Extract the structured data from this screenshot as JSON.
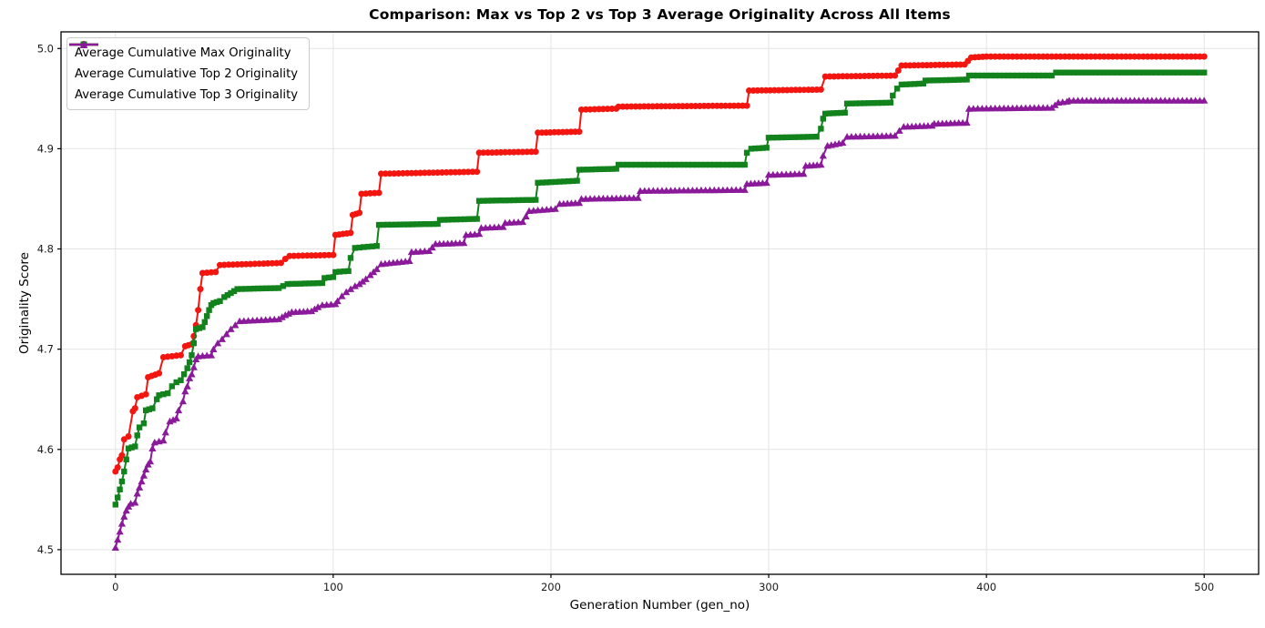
{
  "chart_data": {
    "type": "line",
    "title": "Comparison: Max vs Top 2 vs Top 3 Average Originality Across All Items",
    "grid": true,
    "legend_position": "upper left",
    "axes": {
      "xlabel": "Generation Number (gen_no)",
      "ylabel": "Originality Score",
      "xlim": [
        -25,
        525
      ],
      "ylim": [
        4.4754,
        5.0166
      ],
      "x_tick_values": [
        0,
        100,
        200,
        300,
        400,
        500
      ],
      "x_tick_labels": [
        "0",
        "100",
        "200",
        "300",
        "400",
        "500"
      ],
      "y_tick_values": [
        4.5,
        4.6,
        4.7,
        4.8,
        4.9,
        5.0
      ],
      "y_tick_labels": [
        "4.5",
        "4.6",
        "4.7",
        "4.8",
        "4.9",
        "5.0"
      ],
      "grid_color": "#e4e4e4",
      "spine_color": "#000000"
    },
    "series": [
      {
        "name": "Average Cumulative Max Originality",
        "color": "#f31510",
        "marker": "circle",
        "points": [
          [
            0,
            4.578
          ],
          [
            1,
            4.582
          ],
          [
            2,
            4.59
          ],
          [
            3,
            4.594
          ],
          [
            4,
            4.61
          ],
          [
            6,
            4.613
          ],
          [
            8,
            4.638
          ],
          [
            9,
            4.641
          ],
          [
            10,
            4.652
          ],
          [
            14,
            4.655
          ],
          [
            15,
            4.672
          ],
          [
            20,
            4.676
          ],
          [
            22,
            4.692
          ],
          [
            30,
            4.694
          ],
          [
            32,
            4.703
          ],
          [
            35,
            4.705
          ],
          [
            36,
            4.713
          ],
          [
            37,
            4.724
          ],
          [
            38,
            4.739
          ],
          [
            39,
            4.76
          ],
          [
            40,
            4.776
          ],
          [
            46,
            4.777
          ],
          [
            48,
            4.784
          ],
          [
            76,
            4.786
          ],
          [
            78,
            4.79
          ],
          [
            80,
            4.793
          ],
          [
            100,
            4.794
          ],
          [
            101,
            4.814
          ],
          [
            108,
            4.816
          ],
          [
            109,
            4.834
          ],
          [
            112,
            4.836
          ],
          [
            113,
            4.855
          ],
          [
            121,
            4.856
          ],
          [
            122,
            4.875
          ],
          [
            166,
            4.877
          ],
          [
            167,
            4.896
          ],
          [
            193,
            4.897
          ],
          [
            194,
            4.916
          ],
          [
            213,
            4.917
          ],
          [
            214,
            4.939
          ],
          [
            230,
            4.94
          ],
          [
            231,
            4.942
          ],
          [
            290,
            4.943
          ],
          [
            291,
            4.958
          ],
          [
            324,
            4.959
          ],
          [
            326,
            4.972
          ],
          [
            358,
            4.973
          ],
          [
            361,
            4.983
          ],
          [
            390,
            4.984
          ],
          [
            393,
            4.991
          ],
          [
            400,
            4.992
          ],
          [
            500,
            4.992
          ]
        ]
      },
      {
        "name": "Average Cumulative Top 2 Originality",
        "color": "#12831c",
        "marker": "square",
        "points": [
          [
            0,
            4.545
          ],
          [
            1,
            4.552
          ],
          [
            2,
            4.56
          ],
          [
            3,
            4.568
          ],
          [
            4,
            4.578
          ],
          [
            5,
            4.59
          ],
          [
            6,
            4.601
          ],
          [
            9,
            4.603
          ],
          [
            10,
            4.614
          ],
          [
            11,
            4.622
          ],
          [
            13,
            4.626
          ],
          [
            14,
            4.639
          ],
          [
            17,
            4.641
          ],
          [
            19,
            4.65
          ],
          [
            20,
            4.654
          ],
          [
            24,
            4.656
          ],
          [
            26,
            4.663
          ],
          [
            28,
            4.667
          ],
          [
            30,
            4.669
          ],
          [
            33,
            4.681
          ],
          [
            34,
            4.687
          ],
          [
            35,
            4.694
          ],
          [
            36,
            4.706
          ],
          [
            37,
            4.72
          ],
          [
            40,
            4.722
          ],
          [
            41,
            4.727
          ],
          [
            42,
            4.733
          ],
          [
            43,
            4.739
          ],
          [
            44,
            4.744
          ],
          [
            45,
            4.746
          ],
          [
            48,
            4.748
          ],
          [
            50,
            4.752
          ],
          [
            53,
            4.756
          ],
          [
            56,
            4.76
          ],
          [
            75,
            4.761
          ],
          [
            79,
            4.765
          ],
          [
            95,
            4.766
          ],
          [
            96,
            4.771
          ],
          [
            100,
            4.772
          ],
          [
            101,
            4.777
          ],
          [
            107,
            4.778
          ],
          [
            108,
            4.791
          ],
          [
            110,
            4.801
          ],
          [
            120,
            4.803
          ],
          [
            121,
            4.824
          ],
          [
            148,
            4.825
          ],
          [
            149,
            4.829
          ],
          [
            166,
            4.83
          ],
          [
            167,
            4.848
          ],
          [
            193,
            4.849
          ],
          [
            194,
            4.866
          ],
          [
            212,
            4.868
          ],
          [
            213,
            4.879
          ],
          [
            230,
            4.88
          ],
          [
            231,
            4.884
          ],
          [
            289,
            4.884
          ],
          [
            290,
            4.896
          ],
          [
            292,
            4.9
          ],
          [
            299,
            4.901
          ],
          [
            300,
            4.911
          ],
          [
            322,
            4.912
          ],
          [
            324,
            4.92
          ],
          [
            325,
            4.93
          ],
          [
            326,
            4.935
          ],
          [
            335,
            4.936
          ],
          [
            336,
            4.945
          ],
          [
            356,
            4.946
          ],
          [
            357,
            4.953
          ],
          [
            359,
            4.96
          ],
          [
            361,
            4.964
          ],
          [
            371,
            4.965
          ],
          [
            372,
            4.968
          ],
          [
            391,
            4.969
          ],
          [
            392,
            4.973
          ],
          [
            430,
            4.973
          ],
          [
            432,
            4.976
          ],
          [
            500,
            4.976
          ]
        ]
      },
      {
        "name": "Average Cumulative Top 3 Originality",
        "color": "#8a1a9a",
        "marker": "triangle",
        "points": [
          [
            0,
            4.502
          ],
          [
            1,
            4.51
          ],
          [
            2,
            4.518
          ],
          [
            3,
            4.526
          ],
          [
            4,
            4.533
          ],
          [
            5,
            4.539
          ],
          [
            6,
            4.543
          ],
          [
            7,
            4.546
          ],
          [
            9,
            4.547
          ],
          [
            10,
            4.556
          ],
          [
            11,
            4.562
          ],
          [
            12,
            4.568
          ],
          [
            13,
            4.574
          ],
          [
            14,
            4.58
          ],
          [
            15,
            4.585
          ],
          [
            16,
            4.588
          ],
          [
            17,
            4.601
          ],
          [
            18,
            4.607
          ],
          [
            22,
            4.609
          ],
          [
            23,
            4.617
          ],
          [
            25,
            4.628
          ],
          [
            28,
            4.631
          ],
          [
            29,
            4.639
          ],
          [
            31,
            4.648
          ],
          [
            32,
            4.658
          ],
          [
            33,
            4.663
          ],
          [
            34,
            4.671
          ],
          [
            35,
            4.675
          ],
          [
            36,
            4.682
          ],
          [
            37,
            4.69
          ],
          [
            38,
            4.693
          ],
          [
            44,
            4.694
          ],
          [
            45,
            4.7
          ],
          [
            47,
            4.706
          ],
          [
            49,
            4.71
          ],
          [
            51,
            4.715
          ],
          [
            53,
            4.72
          ],
          [
            55,
            4.724
          ],
          [
            57,
            4.728
          ],
          [
            75,
            4.73
          ],
          [
            78,
            4.734
          ],
          [
            81,
            4.737
          ],
          [
            90,
            4.738
          ],
          [
            93,
            4.742
          ],
          [
            95,
            4.744
          ],
          [
            101,
            4.745
          ],
          [
            102,
            4.748
          ],
          [
            104,
            4.753
          ],
          [
            106,
            4.757
          ],
          [
            108,
            4.76
          ],
          [
            110,
            4.763
          ],
          [
            112,
            4.765
          ],
          [
            115,
            4.77
          ],
          [
            117,
            4.774
          ],
          [
            120,
            4.78
          ],
          [
            122,
            4.785
          ],
          [
            135,
            4.788
          ],
          [
            136,
            4.797
          ],
          [
            144,
            4.798
          ],
          [
            147,
            4.805
          ],
          [
            160,
            4.806
          ],
          [
            161,
            4.814
          ],
          [
            167,
            4.815
          ],
          [
            168,
            4.821
          ],
          [
            178,
            4.822
          ],
          [
            179,
            4.826
          ],
          [
            187,
            4.827
          ],
          [
            190,
            4.838
          ],
          [
            202,
            4.84
          ],
          [
            204,
            4.845
          ],
          [
            213,
            4.846
          ],
          [
            214,
            4.85
          ],
          [
            240,
            4.851
          ],
          [
            241,
            4.858
          ],
          [
            289,
            4.859
          ],
          [
            290,
            4.865
          ],
          [
            299,
            4.866
          ],
          [
            300,
            4.874
          ],
          [
            316,
            4.875
          ],
          [
            317,
            4.883
          ],
          [
            324,
            4.884
          ],
          [
            325,
            4.893
          ],
          [
            327,
            4.903
          ],
          [
            334,
            4.906
          ],
          [
            336,
            4.912
          ],
          [
            358,
            4.913
          ],
          [
            360,
            4.918
          ],
          [
            362,
            4.922
          ],
          [
            375,
            4.923
          ],
          [
            376,
            4.925
          ],
          [
            391,
            4.926
          ],
          [
            392,
            4.94
          ],
          [
            430,
            4.941
          ],
          [
            433,
            4.946
          ],
          [
            437,
            4.947
          ],
          [
            438,
            4.948
          ],
          [
            500,
            4.948
          ]
        ]
      }
    ]
  }
}
